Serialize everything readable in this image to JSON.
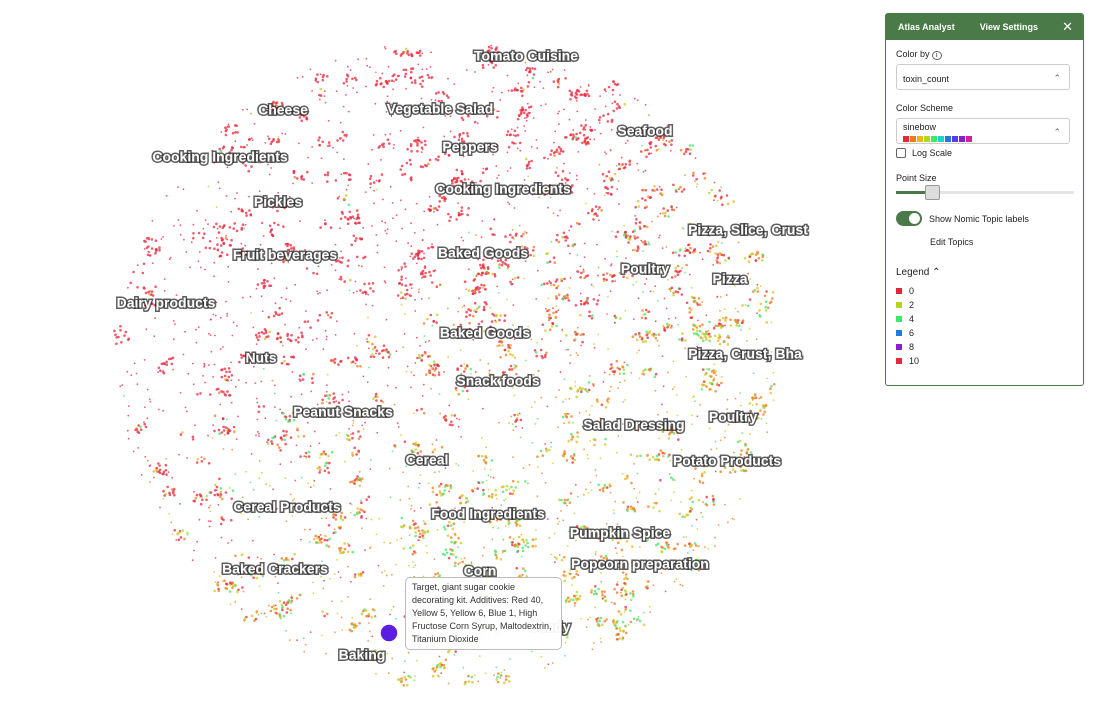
{
  "panel": {
    "tabs": [
      "Atlas Analyst",
      "View Settings"
    ],
    "color_by_label": "Color by",
    "color_by_value": "toxin_count",
    "color_scheme_label": "Color Scheme",
    "color_scheme_value": "sinebow",
    "swatches": [
      "#e8263c",
      "#f07a1a",
      "#e8b81c",
      "#b5d61e",
      "#3ee86a",
      "#1fd4c8",
      "#2178e0",
      "#5a3be8",
      "#8a1fd1",
      "#d11fa8"
    ],
    "log_scale": "Log Scale",
    "point_size": "Point Size",
    "topic_toggle": "Show Nomic Topic labels",
    "edit_topics": "Edit Topics",
    "legend_title": "Legend",
    "legend": [
      {
        "label": "0",
        "color": "#e0273a"
      },
      {
        "label": "2",
        "color": "#b5d61e"
      },
      {
        "label": "4",
        "color": "#3ee86a"
      },
      {
        "label": "6",
        "color": "#2178e0"
      },
      {
        "label": "8",
        "color": "#8a1fd1"
      },
      {
        "label": "10",
        "color": "#e8263c"
      }
    ]
  },
  "map_labels": [
    "Tomato Cuisine",
    "Vegetable Salad",
    "Cheese",
    "Cooking Ingredients",
    "Peppers",
    "Seafood",
    "Cooking Ingredients",
    "Pickles",
    "Pizza, Slice, Crust",
    "Baked Goods",
    "Fruit beverages",
    "Poultry",
    "Pizza",
    "Dairy products",
    "Baked Goods",
    "Pizza, Crust, Bha",
    "Nuts",
    "Snack foods",
    "Peanut Snacks",
    "Poultry",
    "Salad Dressing",
    "Cereal",
    "Potato Products",
    "Cereal Products",
    "Food Ingredients",
    "Pumpkin Spice",
    "Popcorn preparation",
    "Baked Crackers",
    "Corn",
    "Candy",
    "Baking"
  ],
  "tooltip": "Target, giant sugar cookie decorating kit. Additives: Red 40, Yellow 5, Yellow 6, Blue 1, High Fructose Corn Syrup, Maltodextrin, Titanium Dioxide"
}
